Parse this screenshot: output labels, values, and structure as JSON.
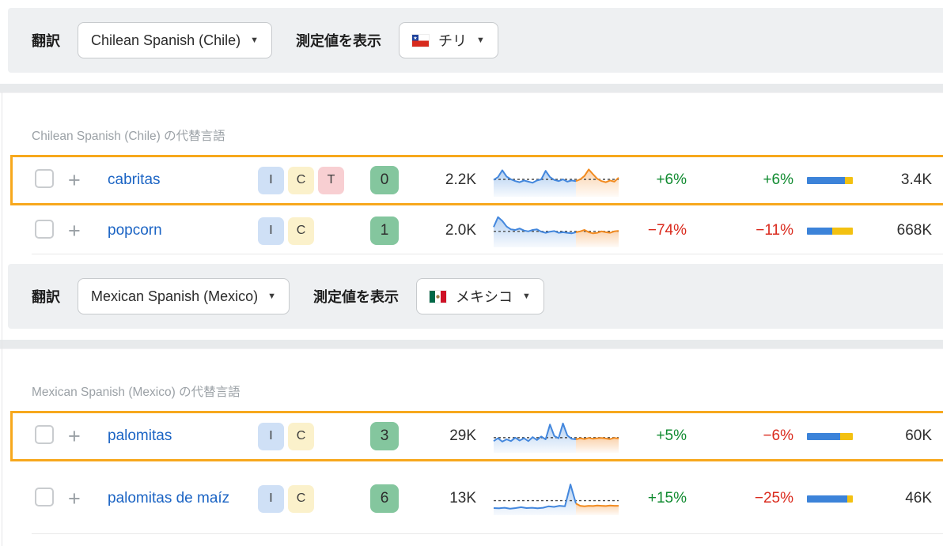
{
  "palette": {
    "bar-bg": "#eef0f2",
    "highlight": "#f7a81d",
    "link": "#1b64c4",
    "up": "#0f8a2f",
    "down": "#da291c",
    "kd-bg": "#84c69e",
    "bar-blue": "#3c83d9",
    "bar-yellow": "#f3c111",
    "spark-blue": "#4387dd",
    "spark-orange": "#f28b20"
  },
  "badge_styles": {
    "I": "#cfe0f6",
    "C": "#fbf1cb",
    "T": "#f8cfd2"
  },
  "icons": {
    "caret": "▼",
    "plus": "+",
    "star": "★",
    "checkbox": "unchecked"
  },
  "groups": [
    {
      "filter": {
        "label": "翻訳",
        "language": "Chilean Spanish (Chile)",
        "metrics_label": "測定値を表示",
        "country": "チリ",
        "flag": "chile"
      },
      "section": {
        "header": "Chilean Spanish (Chile) の代替言語",
        "rows": [
          {
            "keyword": "cabritas",
            "badges": [
              "I",
              "C",
              "T"
            ],
            "difficulty": "0",
            "volume": "2.2K",
            "change1": {
              "text": "+6%",
              "dir": "up"
            },
            "change2": {
              "text": "+6%",
              "dir": "up"
            },
            "bar_blue": 0.83,
            "value": "3.4K",
            "highlighted": true,
            "spark": {
              "baseline": 0.5,
              "blue": [
                0.48,
                0.58,
                0.82,
                0.6,
                0.5,
                0.44,
                0.4,
                0.46,
                0.42,
                0.38,
                0.46,
                0.5,
                0.8,
                0.58,
                0.48,
                0.44,
                0.5,
                0.42,
                0.46,
                0.44
              ],
              "orange": [
                0.5,
                0.62,
                0.85,
                0.68,
                0.52,
                0.44,
                0.4,
                0.46,
                0.42,
                0.56
              ]
            }
          },
          {
            "keyword": "popcorn",
            "badges": [
              "I",
              "C"
            ],
            "difficulty": "1",
            "volume": "2.0K",
            "change1": {
              "text": "−74%",
              "dir": "down"
            },
            "change2": {
              "text": "−11%",
              "dir": "down"
            },
            "bar_blue": 0.55,
            "value": "668K",
            "highlighted": false,
            "spark": {
              "baseline": 0.45,
              "blue": [
                0.6,
                0.95,
                0.82,
                0.62,
                0.52,
                0.5,
                0.55,
                0.48,
                0.45,
                0.5,
                0.52,
                0.44,
                0.4,
                0.44,
                0.46,
                0.4,
                0.42,
                0.4,
                0.38,
                0.42
              ],
              "orange": [
                0.45,
                0.5,
                0.42,
                0.38,
                0.4,
                0.45,
                0.42,
                0.4,
                0.45,
                0.47
              ]
            }
          }
        ]
      }
    },
    {
      "filter": {
        "label": "翻訳",
        "language": "Mexican Spanish (Mexico)",
        "metrics_label": "測定値を表示",
        "country": "メキシコ",
        "flag": "mexico"
      },
      "section": {
        "header": "Mexican Spanish (Mexico) の代替言語",
        "rows": [
          {
            "keyword": "palomitas",
            "badges": [
              "I",
              "C"
            ],
            "difficulty": "3",
            "volume": "29K",
            "change1": {
              "text": "+5%",
              "dir": "up"
            },
            "change2": {
              "text": "−6%",
              "dir": "down"
            },
            "bar_blue": 0.72,
            "value": "60K",
            "highlighted": true,
            "spark": {
              "baseline": 0.42,
              "blue": [
                0.3,
                0.4,
                0.28,
                0.36,
                0.3,
                0.42,
                0.32,
                0.4,
                0.3,
                0.44,
                0.34,
                0.46,
                0.36,
                0.88,
                0.48,
                0.4,
                0.92,
                0.5,
                0.38,
                0.36
              ],
              "orange": [
                0.4,
                0.37,
                0.41,
                0.38,
                0.4,
                0.41,
                0.39,
                0.37,
                0.41,
                0.39
              ]
            }
          },
          {
            "keyword": "palomitas de maíz",
            "badges": [
              "I",
              "C"
            ],
            "difficulty": "6",
            "volume": "13K",
            "change1": {
              "text": "+15%",
              "dir": "up"
            },
            "change2": {
              "text": "−25%",
              "dir": "down"
            },
            "bar_blue": 0.88,
            "value": "46K",
            "highlighted": false,
            "tall": true,
            "spark": {
              "baseline": 0.4,
              "blue": [
                0.14,
                0.13,
                0.15,
                0.12,
                0.14,
                0.17,
                0.14,
                0.15,
                0.13,
                0.15,
                0.2,
                0.18,
                0.22,
                0.2,
                0.97,
                0.3
              ],
              "orange": [
                0.22,
                0.2,
                0.22,
                0.21,
                0.23,
                0.22,
                0.21,
                0.23,
                0.22,
                0.22
              ]
            }
          }
        ]
      }
    }
  ]
}
